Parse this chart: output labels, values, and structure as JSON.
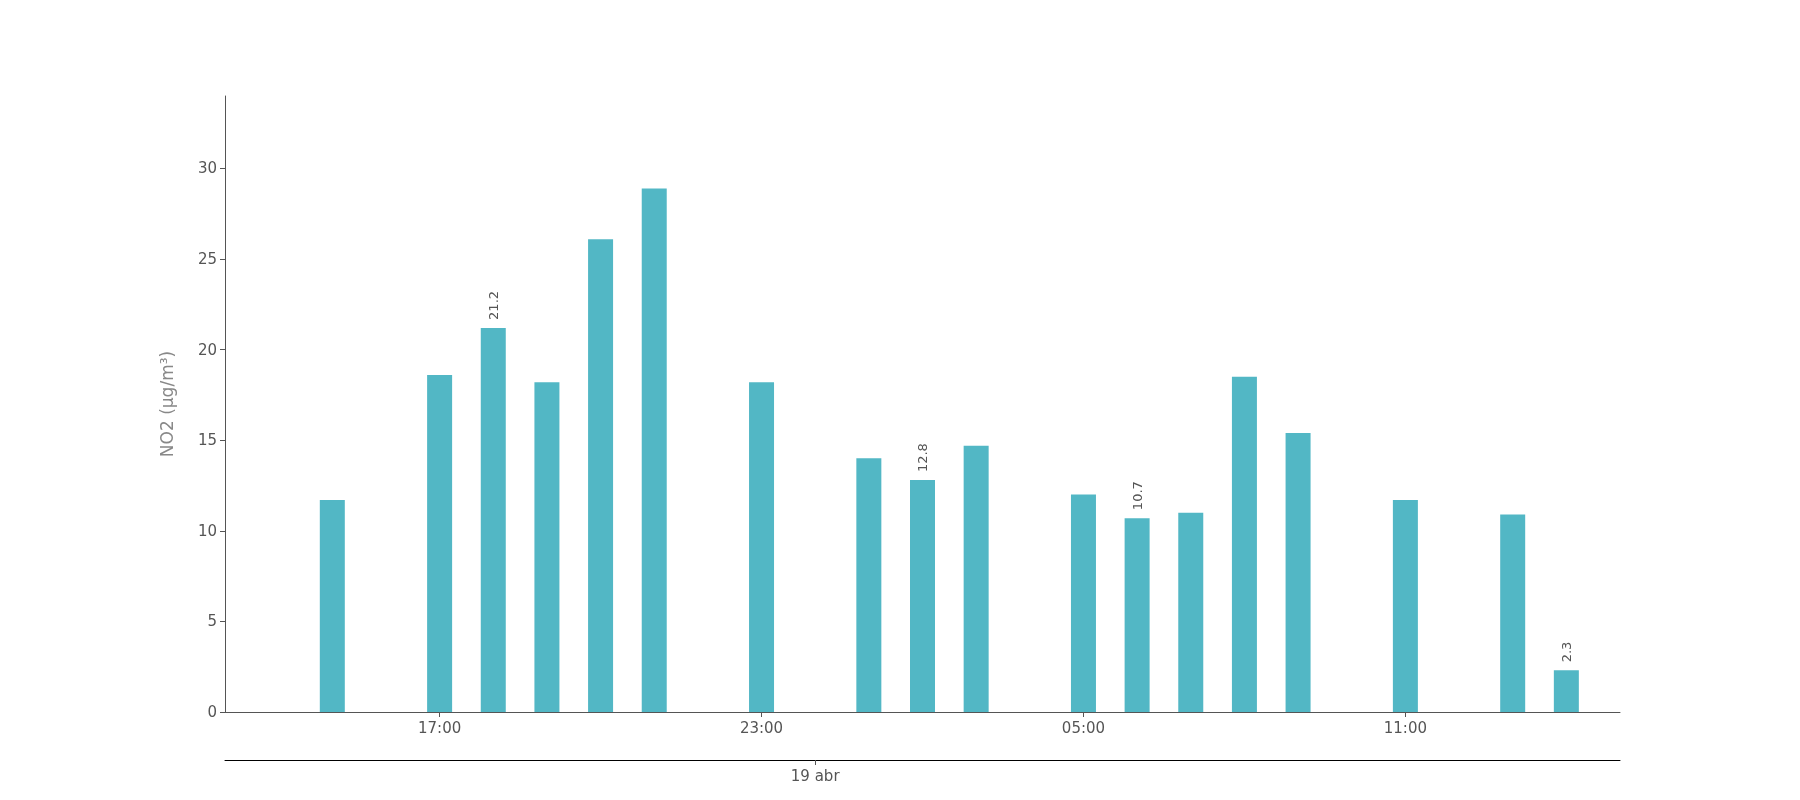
{
  "chart_data": {
    "type": "bar",
    "ylabel": "NO2 (μg/m³)",
    "color": "#52b7c5",
    "x": [
      "--04-18T15:00",
      "--04-18T17:00",
      "--04-18T18:00",
      "--04-18T19:00",
      "--04-18T20:00",
      "--04-18T21:00",
      "--04-18T23:00",
      "--04-19T01:00",
      "--04-19T02:00",
      "--04-19T03:00",
      "--04-19T05:00",
      "--04-19T06:00",
      "--04-19T07:00",
      "--04-19T08:00",
      "--04-19T09:00",
      "--04-19T11:00",
      "--04-19T13:00",
      "--04-19T14:00"
    ],
    "values": [
      11.7,
      18.6,
      21.2,
      18.2,
      26.1,
      28.9,
      18.2,
      14.0,
      12.8,
      14.7,
      12.0,
      10.7,
      11.0,
      18.5,
      15.4,
      11.7,
      10.9,
      2.3
    ],
    "value_labels": [
      null,
      null,
      "21.2",
      null,
      null,
      null,
      null,
      null,
      "12.8",
      null,
      null,
      "10.7",
      null,
      null,
      null,
      null,
      null,
      "2.3"
    ],
    "xlim": [
      "--04-18T13:00",
      "--04-19T15:00"
    ],
    "xticks": [
      {
        "value": "--04-18T17:00",
        "label": "17:00"
      },
      {
        "value": "--04-18T23:00",
        "label": "23:00"
      },
      {
        "value": "--04-19T05:00",
        "label": "05:00"
      },
      {
        "value": "--04-19T11:00",
        "label": "11:00"
      }
    ],
    "ylim": [
      0,
      34
    ],
    "yticks": [
      0,
      5,
      10,
      15,
      20,
      25,
      30
    ],
    "annotations": [
      "19 abr"
    ],
    "grid": false
  }
}
